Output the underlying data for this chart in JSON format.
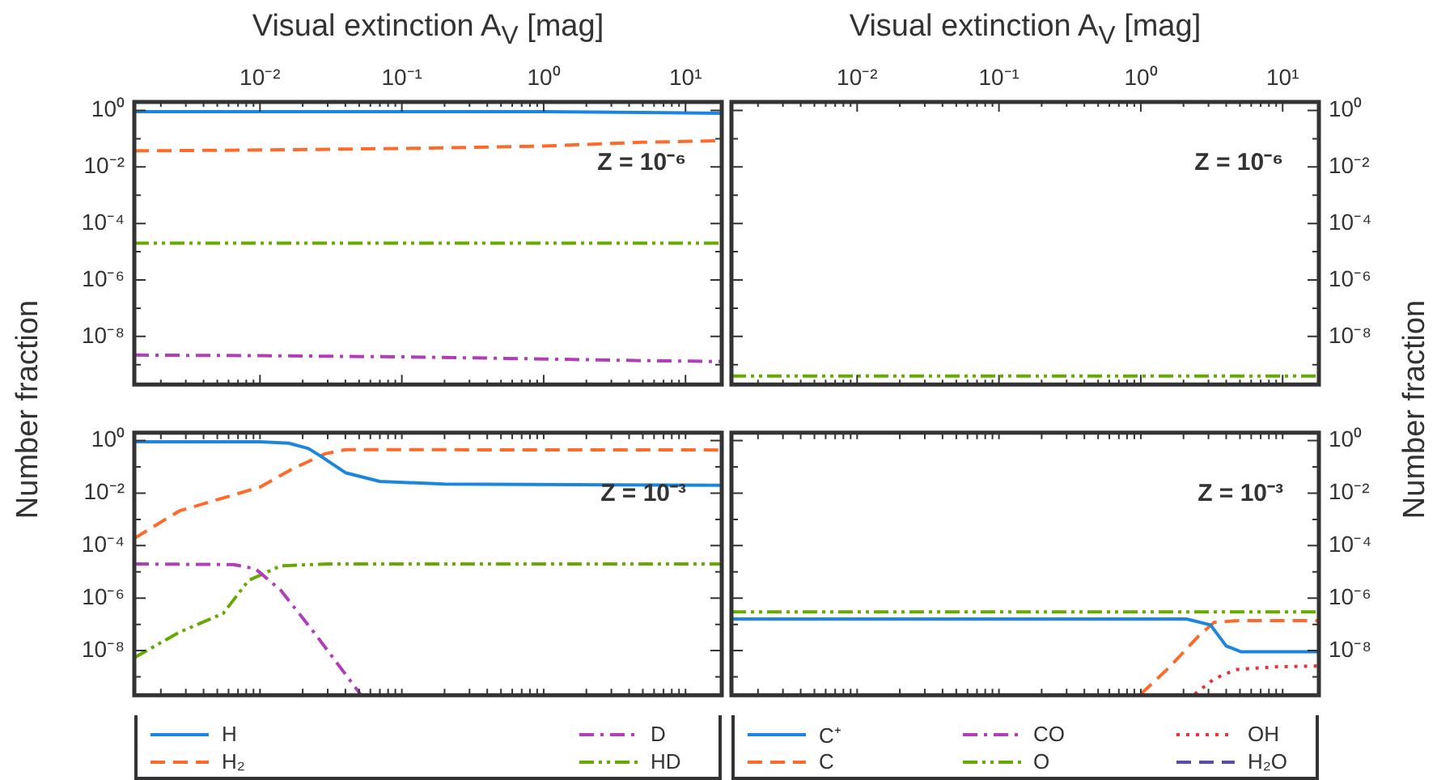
{
  "chart_data": [
    {
      "type": "line",
      "xlabel": "Visual extinction A$_{V}$ [mag]",
      "ylabel": "Number fraction",
      "log": "xy",
      "grid": false,
      "legend": false,
      "annotations": [
        "Z = 10⁻⁶"
      ],
      "xlim": [
        0.0013,
        18
      ],
      "ylim": [
        2e-10,
        2
      ],
      "xticks": [
        {
          "value": 0.002,
          "label": null
        },
        {
          "value": 0.003,
          "label": null
        },
        {
          "value": 0.004,
          "label": null
        },
        {
          "value": 0.005,
          "label": null
        },
        {
          "value": 0.006,
          "label": null
        },
        {
          "value": 0.007,
          "label": null
        },
        {
          "value": 0.008,
          "label": null
        },
        {
          "value": 0.009,
          "label": null
        },
        {
          "value": 0.01,
          "label": "10⁻²"
        },
        {
          "value": 0.02,
          "label": null
        },
        {
          "value": 0.03,
          "label": null
        },
        {
          "value": 0.04,
          "label": null
        },
        {
          "value": 0.05,
          "label": null
        },
        {
          "value": 0.06,
          "label": null
        },
        {
          "value": 0.07,
          "label": null
        },
        {
          "value": 0.08,
          "label": null
        },
        {
          "value": 0.09,
          "label": null
        },
        {
          "value": 0.1,
          "label": "10⁻¹"
        },
        {
          "value": 0.2,
          "label": null
        },
        {
          "value": 0.3,
          "label": null
        },
        {
          "value": 0.4,
          "label": null
        },
        {
          "value": 0.5,
          "label": null
        },
        {
          "value": 0.6,
          "label": null
        },
        {
          "value": 0.7,
          "label": null
        },
        {
          "value": 0.8,
          "label": null
        },
        {
          "value": 0.9,
          "label": null
        },
        {
          "value": 1,
          "label": "10⁰"
        },
        {
          "value": 2,
          "label": null
        },
        {
          "value": 3,
          "label": null
        },
        {
          "value": 4,
          "label": null
        },
        {
          "value": 5,
          "label": null
        },
        {
          "value": 6,
          "label": null
        },
        {
          "value": 7,
          "label": null
        },
        {
          "value": 8,
          "label": null
        },
        {
          "value": 9,
          "label": null
        },
        {
          "value": 10,
          "label": "10¹"
        }
      ],
      "yticks": [
        {
          "value": 1,
          "label": "10⁰"
        },
        {
          "value": 0.1,
          "label": null
        },
        {
          "value": 0.01,
          "label": "10⁻²"
        },
        {
          "value": 0.001,
          "label": null
        },
        {
          "value": 0.0001,
          "label": "10⁻⁴"
        },
        {
          "value": 1e-05,
          "label": null
        },
        {
          "value": 1e-06,
          "label": "10⁻⁶"
        },
        {
          "value": 1e-07,
          "label": null
        },
        {
          "value": 1e-08,
          "label": "10⁻⁸"
        },
        {
          "value": 1e-09,
          "label": null
        }
      ],
      "series": [
        {
          "color": "#1a86e0",
          "line_style": "solid",
          "x": [
            0.0013,
            0.01,
            0.1,
            1,
            5,
            18
          ],
          "values": [
            0.9,
            0.9,
            0.9,
            0.9,
            0.85,
            0.8
          ]
        },
        {
          "color": "#ff6a2a",
          "line_style": "dashed",
          "x": [
            0.0013,
            0.01,
            0.1,
            1,
            5,
            18
          ],
          "values": [
            0.037,
            0.04,
            0.045,
            0.055,
            0.075,
            0.085
          ]
        },
        {
          "color": "#b23dbb",
          "line_style": "dashdot",
          "x": [
            0.0013,
            0.01,
            0.1,
            1,
            5,
            18
          ],
          "values": [
            2.2e-09,
            2.1e-09,
            1.9e-09,
            1.6e-09,
            1.4e-09,
            1.3e-09
          ]
        },
        {
          "color": "#66aa00",
          "line_style": "dashdotdot",
          "x": [
            0.0013,
            18
          ],
          "values": [
            2e-05,
            2e-05
          ]
        }
      ]
    },
    {
      "type": "line",
      "xlabel": "Visual extinction A$_{V}$ [mag]",
      "ylabel": "Number fraction",
      "log": "xy",
      "grid": false,
      "legend": false,
      "annotations": [
        "Z = 10⁻⁶"
      ],
      "xlim": [
        0.0013,
        18
      ],
      "ylim": [
        2e-10,
        2
      ],
      "xticks": [
        {
          "value": 0.002,
          "label": null
        },
        {
          "value": 0.003,
          "label": null
        },
        {
          "value": 0.004,
          "label": null
        },
        {
          "value": 0.005,
          "label": null
        },
        {
          "value": 0.006,
          "label": null
        },
        {
          "value": 0.007,
          "label": null
        },
        {
          "value": 0.008,
          "label": null
        },
        {
          "value": 0.009,
          "label": null
        },
        {
          "value": 0.01,
          "label": "10⁻²"
        },
        {
          "value": 0.02,
          "label": null
        },
        {
          "value": 0.03,
          "label": null
        },
        {
          "value": 0.04,
          "label": null
        },
        {
          "value": 0.05,
          "label": null
        },
        {
          "value": 0.06,
          "label": null
        },
        {
          "value": 0.07,
          "label": null
        },
        {
          "value": 0.08,
          "label": null
        },
        {
          "value": 0.09,
          "label": null
        },
        {
          "value": 0.1,
          "label": "10⁻¹"
        },
        {
          "value": 0.2,
          "label": null
        },
        {
          "value": 0.3,
          "label": null
        },
        {
          "value": 0.4,
          "label": null
        },
        {
          "value": 0.5,
          "label": null
        },
        {
          "value": 0.6,
          "label": null
        },
        {
          "value": 0.7,
          "label": null
        },
        {
          "value": 0.8,
          "label": null
        },
        {
          "value": 0.9,
          "label": null
        },
        {
          "value": 1,
          "label": "10⁰"
        },
        {
          "value": 2,
          "label": null
        },
        {
          "value": 3,
          "label": null
        },
        {
          "value": 4,
          "label": null
        },
        {
          "value": 5,
          "label": null
        },
        {
          "value": 6,
          "label": null
        },
        {
          "value": 7,
          "label": null
        },
        {
          "value": 8,
          "label": null
        },
        {
          "value": 9,
          "label": null
        },
        {
          "value": 10,
          "label": "10¹"
        }
      ],
      "yticks": [
        {
          "value": 1,
          "label": "10⁰"
        },
        {
          "value": 0.1,
          "label": null
        },
        {
          "value": 0.01,
          "label": "10⁻²"
        },
        {
          "value": 0.001,
          "label": null
        },
        {
          "value": 0.0001,
          "label": "10⁻⁴"
        },
        {
          "value": 1e-05,
          "label": null
        },
        {
          "value": 1e-06,
          "label": "10⁻⁶"
        },
        {
          "value": 1e-07,
          "label": null
        },
        {
          "value": 1e-08,
          "label": "10⁻⁸"
        },
        {
          "value": 1e-09,
          "label": null
        }
      ],
      "series": [
        {
          "color": "#66aa00",
          "line_style": "dashdotdot",
          "x": [
            0.0013,
            18
          ],
          "values": [
            4e-10,
            4e-10
          ]
        }
      ]
    },
    {
      "type": "line",
      "log": "xy",
      "grid": false,
      "legend": "bottom",
      "tick_labels": "y",
      "annotations": [
        "Z = 10⁻³"
      ],
      "xlim": [
        0.0013,
        18
      ],
      "ylim": [
        2e-10,
        2
      ],
      "xticks": [
        {
          "value": 0.002,
          "label": null
        },
        {
          "value": 0.003,
          "label": null
        },
        {
          "value": 0.004,
          "label": null
        },
        {
          "value": 0.005,
          "label": null
        },
        {
          "value": 0.006,
          "label": null
        },
        {
          "value": 0.007,
          "label": null
        },
        {
          "value": 0.008,
          "label": null
        },
        {
          "value": 0.009,
          "label": null
        },
        {
          "value": 0.01,
          "label": null
        },
        {
          "value": 0.02,
          "label": null
        },
        {
          "value": 0.03,
          "label": null
        },
        {
          "value": 0.04,
          "label": null
        },
        {
          "value": 0.05,
          "label": null
        },
        {
          "value": 0.06,
          "label": null
        },
        {
          "value": 0.07,
          "label": null
        },
        {
          "value": 0.08,
          "label": null
        },
        {
          "value": 0.09,
          "label": null
        },
        {
          "value": 0.1,
          "label": null
        },
        {
          "value": 0.2,
          "label": null
        },
        {
          "value": 0.3,
          "label": null
        },
        {
          "value": 0.4,
          "label": null
        },
        {
          "value": 0.5,
          "label": null
        },
        {
          "value": 0.6,
          "label": null
        },
        {
          "value": 0.7,
          "label": null
        },
        {
          "value": 0.8,
          "label": null
        },
        {
          "value": 0.9,
          "label": null
        },
        {
          "value": 1,
          "label": null
        },
        {
          "value": 2,
          "label": null
        },
        {
          "value": 3,
          "label": null
        },
        {
          "value": 4,
          "label": null
        },
        {
          "value": 5,
          "label": null
        },
        {
          "value": 6,
          "label": null
        },
        {
          "value": 7,
          "label": null
        },
        {
          "value": 8,
          "label": null
        },
        {
          "value": 9,
          "label": null
        },
        {
          "value": 10,
          "label": null
        }
      ],
      "yticks": [
        {
          "value": 1,
          "label": "10⁰"
        },
        {
          "value": 0.1,
          "label": null
        },
        {
          "value": 0.01,
          "label": "10⁻²"
        },
        {
          "value": 0.001,
          "label": null
        },
        {
          "value": 0.0001,
          "label": "10⁻⁴"
        },
        {
          "value": 1e-05,
          "label": null
        },
        {
          "value": 1e-06,
          "label": "10⁻⁶"
        },
        {
          "value": 1e-07,
          "label": null
        },
        {
          "value": 1e-08,
          "label": "10⁻⁸"
        },
        {
          "value": 1e-09,
          "label": null
        }
      ],
      "series": [
        {
          "name": "H",
          "color": "#1a86e0",
          "line_style": "solid",
          "x": [
            0.0013,
            0.01,
            0.016,
            0.022,
            0.027,
            0.04,
            0.07,
            0.2,
            18
          ],
          "values": [
            0.9,
            0.9,
            0.8,
            0.5,
            0.25,
            0.06,
            0.028,
            0.022,
            0.02
          ]
        },
        {
          "name": "H₂",
          "color": "#ff6a2a",
          "line_style": "dashed",
          "x": [
            0.0013,
            0.0027,
            0.01,
            0.017,
            0.029,
            0.04,
            0.1,
            18
          ],
          "values": [
            0.00019,
            0.0021,
            0.017,
            0.085,
            0.32,
            0.45,
            0.45,
            0.44
          ]
        },
        {
          "name": "D",
          "color": "#b23dbb",
          "line_style": "dashdot",
          "x": [
            0.0013,
            0.0065,
            0.0093,
            0.014,
            0.024,
            0.051
          ],
          "values": [
            2e-05,
            1.9e-05,
            1.3e-05,
            2e-06,
            5e-08,
            2.2e-10
          ]
        },
        {
          "name": "HD",
          "color": "#66aa00",
          "line_style": "dashdotdot",
          "x": [
            0.0013,
            0.0027,
            0.0055,
            0.0083,
            0.014,
            0.03,
            18
          ],
          "values": [
            5.4e-09,
            5e-08,
            2.6e-07,
            4.7e-06,
            1.7e-05,
            2e-05,
            2e-05
          ]
        }
      ]
    },
    {
      "type": "line",
      "log": "xy",
      "grid": false,
      "legend": "bottom",
      "tick_labels": "y",
      "annotations": [
        "Z = 10⁻³"
      ],
      "xlim": [
        0.0013,
        18
      ],
      "ylim": [
        2e-10,
        2
      ],
      "xticks": [
        {
          "value": 0.002,
          "label": null
        },
        {
          "value": 0.003,
          "label": null
        },
        {
          "value": 0.004,
          "label": null
        },
        {
          "value": 0.005,
          "label": null
        },
        {
          "value": 0.006,
          "label": null
        },
        {
          "value": 0.007,
          "label": null
        },
        {
          "value": 0.008,
          "label": null
        },
        {
          "value": 0.009,
          "label": null
        },
        {
          "value": 0.01,
          "label": null
        },
        {
          "value": 0.02,
          "label": null
        },
        {
          "value": 0.03,
          "label": null
        },
        {
          "value": 0.04,
          "label": null
        },
        {
          "value": 0.05,
          "label": null
        },
        {
          "value": 0.06,
          "label": null
        },
        {
          "value": 0.07,
          "label": null
        },
        {
          "value": 0.08,
          "label": null
        },
        {
          "value": 0.09,
          "label": null
        },
        {
          "value": 0.1,
          "label": null
        },
        {
          "value": 0.2,
          "label": null
        },
        {
          "value": 0.3,
          "label": null
        },
        {
          "value": 0.4,
          "label": null
        },
        {
          "value": 0.5,
          "label": null
        },
        {
          "value": 0.6,
          "label": null
        },
        {
          "value": 0.7,
          "label": null
        },
        {
          "value": 0.8,
          "label": null
        },
        {
          "value": 0.9,
          "label": null
        },
        {
          "value": 1,
          "label": null
        },
        {
          "value": 2,
          "label": null
        },
        {
          "value": 3,
          "label": null
        },
        {
          "value": 4,
          "label": null
        },
        {
          "value": 5,
          "label": null
        },
        {
          "value": 6,
          "label": null
        },
        {
          "value": 7,
          "label": null
        },
        {
          "value": 8,
          "label": null
        },
        {
          "value": 9,
          "label": null
        },
        {
          "value": 10,
          "label": null
        }
      ],
      "yticks": [
        {
          "value": 1,
          "label": "10⁰"
        },
        {
          "value": 0.1,
          "label": null
        },
        {
          "value": 0.01,
          "label": "10⁻²"
        },
        {
          "value": 0.001,
          "label": null
        },
        {
          "value": 0.0001,
          "label": "10⁻⁴"
        },
        {
          "value": 1e-05,
          "label": null
        },
        {
          "value": 1e-06,
          "label": "10⁻⁶"
        },
        {
          "value": 1e-07,
          "label": null
        },
        {
          "value": 1e-08,
          "label": "10⁻⁸"
        },
        {
          "value": 1e-09,
          "label": null
        }
      ],
      "series": [
        {
          "name": "C⁺",
          "color": "#1a86e0",
          "line_style": "solid",
          "x": [
            0.0013,
            2.1,
            3.1,
            4,
            5.1,
            18
          ],
          "values": [
            1.6e-07,
            1.6e-07,
            9.5e-08,
            1.5e-08,
            9e-09,
            9e-09
          ]
        },
        {
          "name": "C",
          "color": "#ff6a2a",
          "line_style": "dashed",
          "x": [
            1,
            1.6,
            2.6,
            3.3,
            5,
            18
          ],
          "values": [
            2.2e-10,
            2.4e-09,
            4e-08,
            1.2e-07,
            1.4e-07,
            1.4e-07
          ]
        },
        {
          "name": "CO",
          "color": "#b23dbb",
          "line_style": "dashdot"
        },
        {
          "name": "O",
          "color": "#66aa00",
          "line_style": "dashdotdot",
          "x": [
            0.0013,
            18
          ],
          "values": [
            3e-07,
            3e-07
          ]
        },
        {
          "name": "OH",
          "color": "#e8323c",
          "line_style": "dotted",
          "x": [
            2.4,
            3.3,
            4.7,
            8.7,
            18
          ],
          "values": [
            2.2e-10,
            8.5e-10,
            1.9e-09,
            2.4e-09,
            2.6e-09
          ]
        },
        {
          "name": "H₂O",
          "color": "#5b4ca8",
          "line_style": "dashed"
        }
      ]
    }
  ]
}
